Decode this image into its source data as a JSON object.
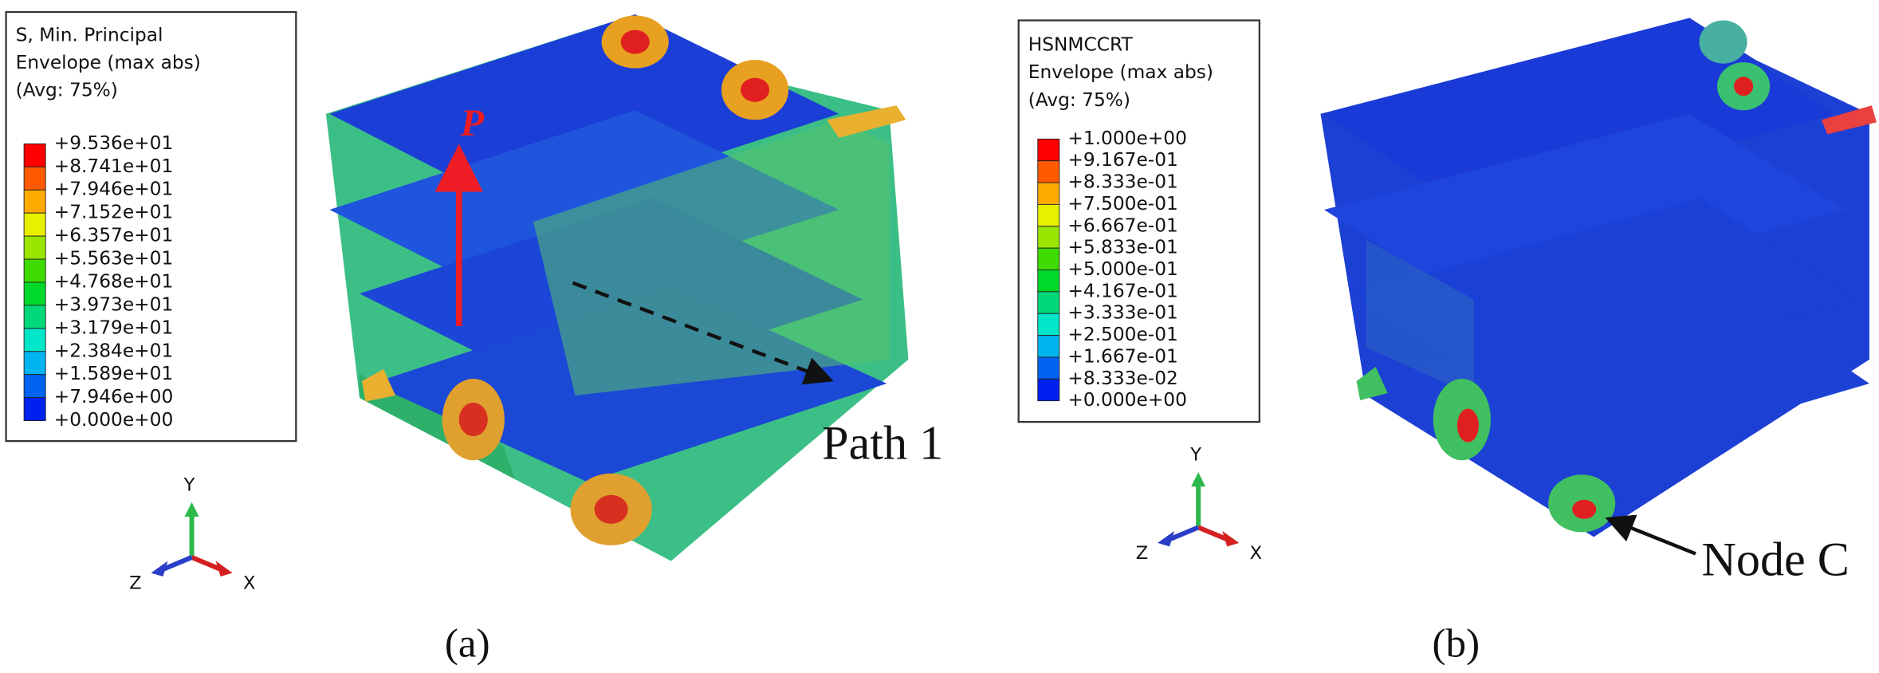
{
  "panels": [
    {
      "legend": {
        "title": [
          "S, Min. Principal",
          "Envelope (max abs)",
          "(Avg: 75%)"
        ],
        "values": [
          "+9.536e+01",
          "+8.741e+01",
          "+7.946e+01",
          "+7.152e+01",
          "+6.357e+01",
          "+5.563e+01",
          "+4.768e+01",
          "+3.973e+01",
          "+3.179e+01",
          "+2.384e+01",
          "+1.589e+01",
          "+7.946e+00",
          "+0.000e+00"
        ]
      },
      "axes": {
        "y": "Y",
        "z": "Z",
        "x": "X"
      },
      "annotations": [
        "P",
        "Path 1"
      ],
      "caption": "(a)"
    },
    {
      "legend": {
        "title": [
          "HSNMCCRT",
          "Envelope (max abs)",
          "(Avg: 75%)"
        ],
        "values": [
          "+1.000e+00",
          "+9.167e-01",
          "+8.333e-01",
          "+7.500e-01",
          "+6.667e-01",
          "+5.833e-01",
          "+5.000e-01",
          "+4.167e-01",
          "+3.333e-01",
          "+2.500e-01",
          "+1.667e-01",
          "+8.333e-02",
          "+0.000e+00"
        ]
      },
      "axes": {
        "y": "Y",
        "z": "Z",
        "x": "X"
      },
      "annotations": [
        "Node C"
      ],
      "caption": "(b)"
    }
  ]
}
